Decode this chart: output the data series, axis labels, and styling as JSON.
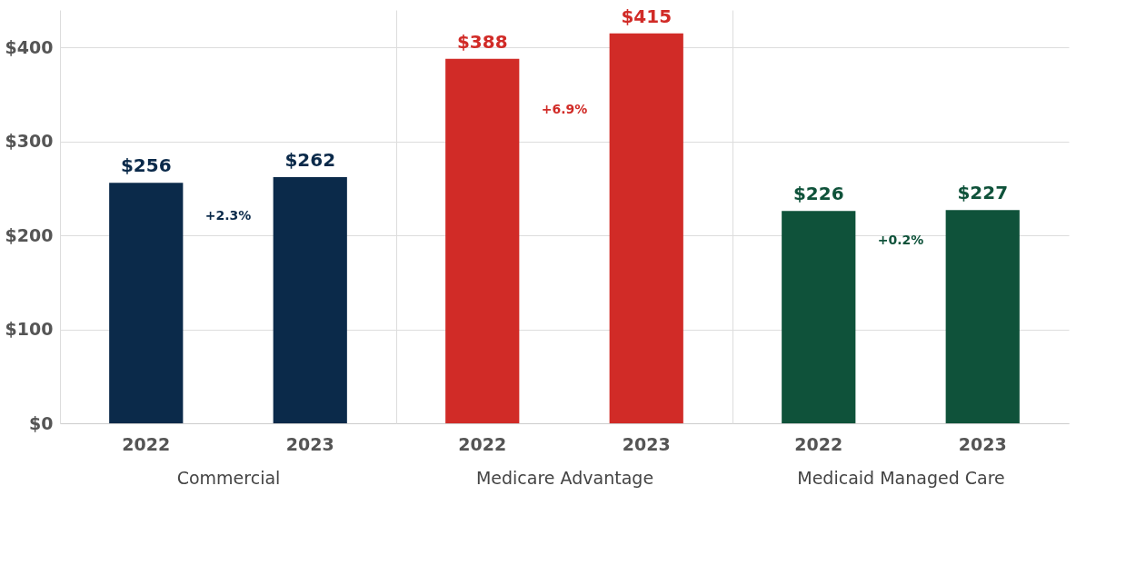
{
  "chart_data": [
    {
      "type": "bar",
      "xlabel": "Commercial",
      "categories": [
        "2022",
        "2023"
      ],
      "values": [
        256,
        262
      ],
      "colors": [
        "#0b2a4a",
        "#0b2a4a"
      ],
      "value_labels": [
        "$256",
        "$262"
      ],
      "annotations": [
        "+2.3%"
      ],
      "ylim": [
        0,
        440
      ],
      "yticks": [
        {
          "value": 0,
          "label": "$0"
        },
        {
          "value": 100,
          "label": "$100"
        },
        {
          "value": 200,
          "label": "$200"
        },
        {
          "value": 300,
          "label": "$300"
        },
        {
          "value": 400,
          "label": "$400"
        }
      ],
      "grid": "y"
    },
    {
      "type": "bar",
      "xlabel": "Medicare Advantage",
      "categories": [
        "2022",
        "2023"
      ],
      "values": [
        388,
        415
      ],
      "colors": [
        "#d12b27",
        "#d12b27"
      ],
      "value_labels": [
        "$388",
        "$415"
      ],
      "annotations": [
        "+6.9%"
      ],
      "ylim": [
        0,
        440
      ],
      "yticks": [
        {
          "value": 0,
          "label": null
        },
        {
          "value": 100,
          "label": null
        },
        {
          "value": 200,
          "label": null
        },
        {
          "value": 300,
          "label": null
        },
        {
          "value": 400,
          "label": null
        }
      ],
      "grid": "y",
      "tick_labels": "x"
    },
    {
      "type": "bar",
      "xlabel": "Medicaid Managed Care",
      "categories": [
        "2022",
        "2023"
      ],
      "values": [
        226,
        227
      ],
      "colors": [
        "#0f523a",
        "#0f523a"
      ],
      "value_labels": [
        "$226",
        "$227"
      ],
      "annotations": [
        "+0.2%"
      ],
      "ylim": [
        0,
        440
      ],
      "yticks": [
        {
          "value": 0,
          "label": null
        },
        {
          "value": 100,
          "label": null
        },
        {
          "value": 200,
          "label": null
        },
        {
          "value": 300,
          "label": null
        },
        {
          "value": 400,
          "label": null
        }
      ],
      "grid": "y",
      "tick_labels": "x"
    }
  ]
}
